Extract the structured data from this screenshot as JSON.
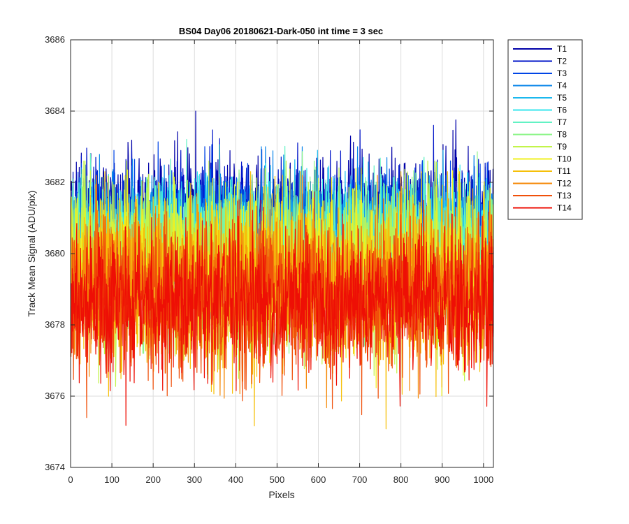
{
  "chart_data": {
    "type": "line",
    "title": "BS04 Day06 20180621-Dark-050 int time = 3 sec",
    "xlabel": "Pixels",
    "ylabel": "Track Mean Signal (ADU/pix)",
    "xlim": [
      0,
      1024
    ],
    "ylim": [
      3674,
      3686
    ],
    "xticks": [
      0,
      100,
      200,
      300,
      400,
      500,
      600,
      700,
      800,
      900,
      1000
    ],
    "yticks": [
      3674,
      3676,
      3678,
      3680,
      3682,
      3684,
      3686
    ],
    "grid": true,
    "legend_position": "outside-top-right",
    "n_points": 1024,
    "series": [
      {
        "name": "T1",
        "color": "#0000a8",
        "mean": 3681.0,
        "low": 3678.6,
        "high": 3684.0
      },
      {
        "name": "T2",
        "color": "#0014c8",
        "mean": 3680.8,
        "low": 3678.3,
        "high": 3683.6
      },
      {
        "name": "T3",
        "color": "#0045e6",
        "mean": 3680.6,
        "low": 3678.1,
        "high": 3683.2
      },
      {
        "name": "T4",
        "color": "#0a85ea",
        "mean": 3680.5,
        "low": 3677.9,
        "high": 3683.0
      },
      {
        "name": "T5",
        "color": "#1bb8ee",
        "mean": 3680.4,
        "low": 3677.7,
        "high": 3682.9
      },
      {
        "name": "T6",
        "color": "#36e6ec",
        "mean": 3680.3,
        "low": 3677.6,
        "high": 3682.7
      },
      {
        "name": "T7",
        "color": "#62f2c4",
        "mean": 3680.1,
        "low": 3677.4,
        "high": 3683.7
      },
      {
        "name": "T8",
        "color": "#8ef58a",
        "mean": 3679.9,
        "low": 3677.2,
        "high": 3683.2
      },
      {
        "name": "T9",
        "color": "#c2f44a",
        "mean": 3679.7,
        "low": 3675.3,
        "high": 3682.6
      },
      {
        "name": "T10",
        "color": "#f0f020",
        "mean": 3679.5,
        "low": 3675.8,
        "high": 3682.4
      },
      {
        "name": "T11",
        "color": "#f6c00a",
        "mean": 3679.2,
        "low": 3674.8,
        "high": 3682.3
      },
      {
        "name": "T12",
        "color": "#f58a0a",
        "mean": 3679.0,
        "low": 3675.6,
        "high": 3682.2
      },
      {
        "name": "T13",
        "color": "#f0500a",
        "mean": 3678.8,
        "low": 3675.4,
        "high": 3682.0
      },
      {
        "name": "T14",
        "color": "#ee0f05",
        "mean": 3678.6,
        "low": 3675.0,
        "high": 3681.5
      }
    ]
  }
}
